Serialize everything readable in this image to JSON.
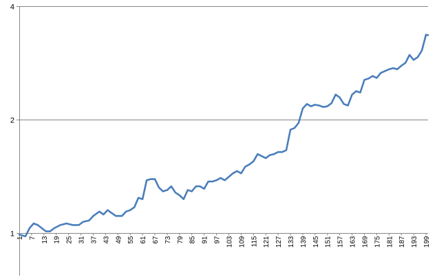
{
  "chart_data": {
    "type": "line",
    "title": "",
    "xlabel": "",
    "ylabel": "",
    "y_scale": "log2",
    "ylim": [
      1,
      4
    ],
    "y_ticks": [
      1,
      2,
      4
    ],
    "x_tick_labels": [
      "1",
      "7",
      "13",
      "19",
      "25",
      "31",
      "37",
      "43",
      "49",
      "55",
      "61",
      "67",
      "73",
      "79",
      "85",
      "91",
      "97",
      "103",
      "109",
      "115",
      "121",
      "127",
      "133",
      "139",
      "145",
      "151",
      "157",
      "163",
      "169",
      "175",
      "181",
      "187",
      "193",
      "199"
    ],
    "grid": "horizontal major gridlines",
    "legend": "none",
    "x_count": 200,
    "series": [
      {
        "color": "#4a7ebb",
        "points": [
          [
            1,
            0.99
          ],
          [
            4,
            0.98
          ],
          [
            6,
            1.03
          ],
          [
            8,
            1.06
          ],
          [
            10,
            1.05
          ],
          [
            12,
            1.03
          ],
          [
            14,
            1.01
          ],
          [
            16,
            1.01
          ],
          [
            18,
            1.03
          ],
          [
            21,
            1.05
          ],
          [
            24,
            1.06
          ],
          [
            27,
            1.05
          ],
          [
            30,
            1.05
          ],
          [
            32,
            1.07
          ],
          [
            35,
            1.08
          ],
          [
            37,
            1.11
          ],
          [
            40,
            1.14
          ],
          [
            42,
            1.12
          ],
          [
            44,
            1.15
          ],
          [
            46,
            1.13
          ],
          [
            48,
            1.11
          ],
          [
            51,
            1.11
          ],
          [
            53,
            1.14
          ],
          [
            55,
            1.15
          ],
          [
            57,
            1.17
          ],
          [
            59,
            1.24
          ],
          [
            61,
            1.23
          ],
          [
            63,
            1.38
          ],
          [
            65,
            1.39
          ],
          [
            67,
            1.39
          ],
          [
            69,
            1.32
          ],
          [
            71,
            1.29
          ],
          [
            73,
            1.3
          ],
          [
            75,
            1.33
          ],
          [
            77,
            1.28
          ],
          [
            79,
            1.26
          ],
          [
            81,
            1.23
          ],
          [
            83,
            1.3
          ],
          [
            85,
            1.29
          ],
          [
            87,
            1.33
          ],
          [
            89,
            1.33
          ],
          [
            91,
            1.31
          ],
          [
            93,
            1.37
          ],
          [
            95,
            1.37
          ],
          [
            97,
            1.38
          ],
          [
            99,
            1.4
          ],
          [
            101,
            1.38
          ],
          [
            103,
            1.41
          ],
          [
            105,
            1.44
          ],
          [
            107,
            1.46
          ],
          [
            109,
            1.44
          ],
          [
            111,
            1.5
          ],
          [
            113,
            1.52
          ],
          [
            115,
            1.55
          ],
          [
            117,
            1.62
          ],
          [
            119,
            1.6
          ],
          [
            121,
            1.58
          ],
          [
            123,
            1.61
          ],
          [
            125,
            1.62
          ],
          [
            127,
            1.64
          ],
          [
            129,
            1.64
          ],
          [
            131,
            1.66
          ],
          [
            133,
            1.88
          ],
          [
            135,
            1.9
          ],
          [
            137,
            1.96
          ],
          [
            139,
            2.14
          ],
          [
            141,
            2.2
          ],
          [
            143,
            2.17
          ],
          [
            145,
            2.19
          ],
          [
            147,
            2.18
          ],
          [
            149,
            2.16
          ],
          [
            151,
            2.17
          ],
          [
            153,
            2.21
          ],
          [
            155,
            2.33
          ],
          [
            157,
            2.29
          ],
          [
            159,
            2.2
          ],
          [
            161,
            2.18
          ],
          [
            163,
            2.33
          ],
          [
            165,
            2.38
          ],
          [
            167,
            2.36
          ],
          [
            169,
            2.55
          ],
          [
            171,
            2.57
          ],
          [
            173,
            2.61
          ],
          [
            175,
            2.58
          ],
          [
            177,
            2.66
          ],
          [
            179,
            2.69
          ],
          [
            181,
            2.72
          ],
          [
            183,
            2.74
          ],
          [
            185,
            2.72
          ],
          [
            187,
            2.78
          ],
          [
            189,
            2.83
          ],
          [
            191,
            2.97
          ],
          [
            193,
            2.88
          ],
          [
            195,
            2.93
          ],
          [
            197,
            3.05
          ],
          [
            198,
            3.2
          ],
          [
            199,
            3.36
          ],
          [
            200,
            3.35
          ]
        ]
      }
    ]
  }
}
